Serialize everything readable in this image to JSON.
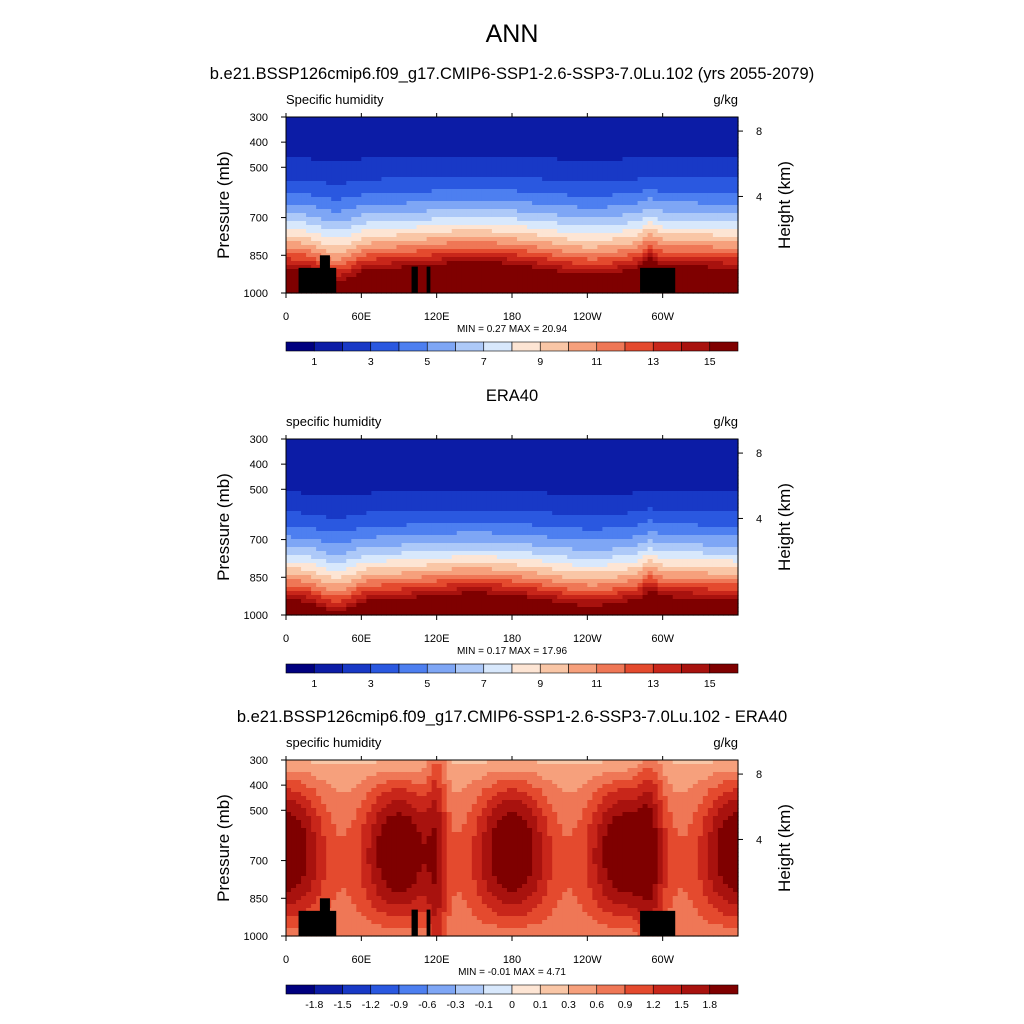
{
  "figure": {
    "title": "ANN"
  },
  "colormaps": {
    "absolute": [
      "#00007f",
      "#0c1ca6",
      "#1839c6",
      "#2a58e0",
      "#4d7ff0",
      "#7ea6f5",
      "#adc9f8",
      "#d8e8fc",
      "#fde5d4",
      "#f9c6a6",
      "#f6a07c",
      "#ef7756",
      "#e44a2e",
      "#c8261a",
      "#a8120e",
      "#7f0000"
    ],
    "difference": [
      "#00007f",
      "#0c1ca6",
      "#1839c6",
      "#2a58e0",
      "#4d7ff0",
      "#7ea6f5",
      "#adc9f8",
      "#d8e8fc",
      "#fde5d4",
      "#f9c6a6",
      "#f6a07c",
      "#ef7756",
      "#e44a2e",
      "#c8261a",
      "#a8120e",
      "#7f0000"
    ]
  },
  "chart_data": [
    {
      "type": "heatmap",
      "title": "b.e21.BSSP126cmip6.f09_g17.CMIP6-SSP1-2.6-SSP3-7.0Lu.102 (yrs 2055-2079)",
      "left_label": "Specific humidity",
      "right_label": "g/kg",
      "ylabel": "Pressure (mb)",
      "y2label": "Height (km)",
      "xticks": [
        "0",
        "60E",
        "120E",
        "180",
        "120W",
        "60W"
      ],
      "xtick_lon": [
        0,
        60,
        120,
        180,
        240,
        300
      ],
      "xlim": [
        0,
        360
      ],
      "yticks": [
        "300",
        "400",
        "500",
        "700",
        "850",
        "1000"
      ],
      "ytick_p": [
        300,
        400,
        500,
        700,
        850,
        1000
      ],
      "ylim": [
        300,
        1000
      ],
      "y2ticks": [
        "8",
        "4"
      ],
      "y2tick_p": [
        356,
        616
      ],
      "stats": "MIN =  0.27  MAX =  20.94",
      "min": 0.27,
      "max": 20.94,
      "colorbar_labels": [
        "1",
        "3",
        "5",
        "7",
        "9",
        "11",
        "13",
        "15"
      ],
      "colormap": "absolute",
      "field": "model",
      "terrain": true
    },
    {
      "type": "heatmap",
      "title": "ERA40",
      "left_label": "specific humidity",
      "right_label": "g/kg",
      "ylabel": "Pressure (mb)",
      "y2label": "Height (km)",
      "xticks": [
        "0",
        "60E",
        "120E",
        "180",
        "120W",
        "60W"
      ],
      "xtick_lon": [
        0,
        60,
        120,
        180,
        240,
        300
      ],
      "xlim": [
        0,
        360
      ],
      "yticks": [
        "300",
        "400",
        "500",
        "700",
        "850",
        "1000"
      ],
      "ytick_p": [
        300,
        400,
        500,
        700,
        850,
        1000
      ],
      "ylim": [
        300,
        1000
      ],
      "y2ticks": [
        "8",
        "4"
      ],
      "y2tick_p": [
        356,
        616
      ],
      "stats": "MIN =  0.17  MAX =  17.96",
      "min": 0.17,
      "max": 17.96,
      "colorbar_labels": [
        "1",
        "3",
        "5",
        "7",
        "9",
        "11",
        "13",
        "15"
      ],
      "colormap": "absolute",
      "field": "obs",
      "terrain": false
    },
    {
      "type": "heatmap",
      "title": "b.e21.BSSP126cmip6.f09_g17.CMIP6-SSP1-2.6-SSP3-7.0Lu.102 - ERA40",
      "left_label": "specific humidity",
      "right_label": "g/kg",
      "ylabel": "Pressure (mb)",
      "y2label": "Height (km)",
      "xticks": [
        "0",
        "60E",
        "120E",
        "180",
        "120W",
        "60W"
      ],
      "xtick_lon": [
        0,
        60,
        120,
        180,
        240,
        300
      ],
      "xlim": [
        0,
        360
      ],
      "yticks": [
        "300",
        "400",
        "500",
        "700",
        "850",
        "1000"
      ],
      "ytick_p": [
        300,
        400,
        500,
        700,
        850,
        1000
      ],
      "ylim": [
        300,
        1000
      ],
      "y2ticks": [
        "8",
        "4"
      ],
      "y2tick_p": [
        356,
        616
      ],
      "stats": "MIN =  -0.01  MAX =   4.71",
      "min": -0.01,
      "max": 4.71,
      "colorbar_labels": [
        "-1.8",
        "-1.5",
        "-1.2",
        "-0.9",
        "-0.6",
        "-0.3",
        "-0.1",
        "0",
        "0.1",
        "0.3",
        "0.6",
        "0.9",
        "1.2",
        "1.5",
        "1.8"
      ],
      "colormap": "difference",
      "field": "diff",
      "terrain": true
    }
  ]
}
